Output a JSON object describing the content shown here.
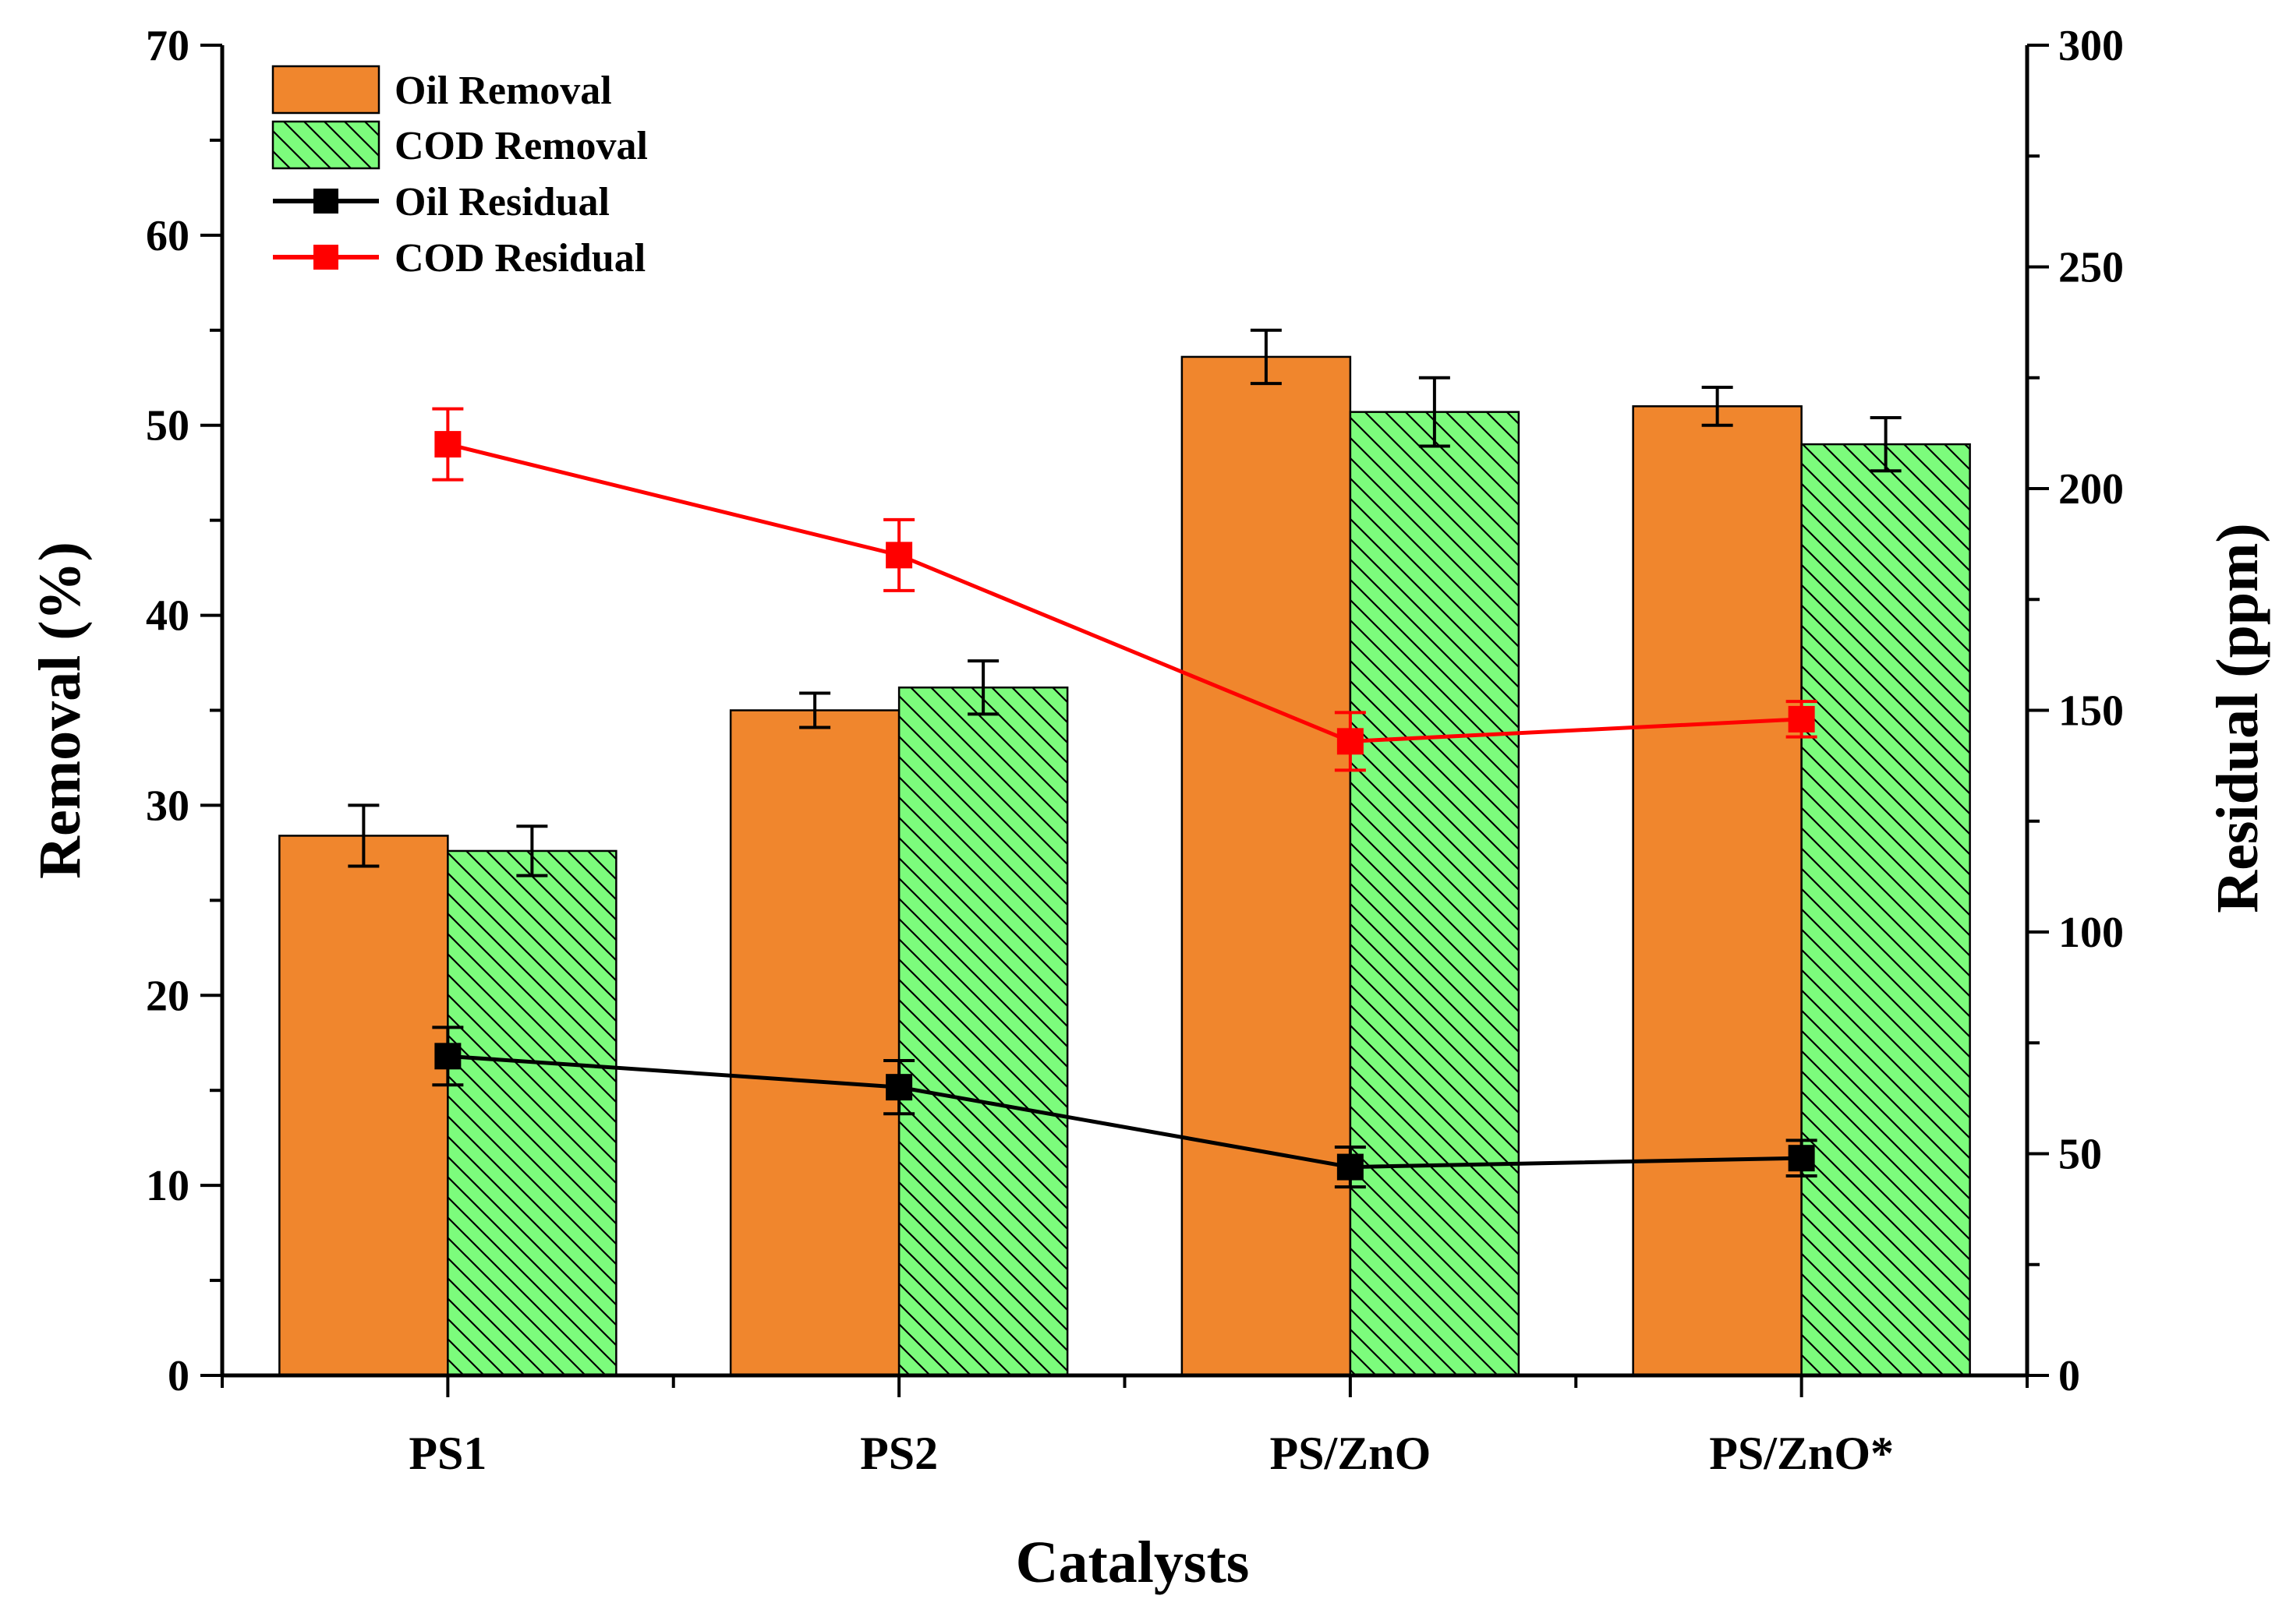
{
  "chart_data": {
    "type": "bar",
    "xlabel": "Catalysts",
    "ylabel": "Removal (%)",
    "y2label": "Residual (ppm)",
    "categories": [
      "PS1",
      "PS2",
      "PS/ZnO",
      "PS/ZnO*"
    ],
    "ylim": [
      0,
      70
    ],
    "y2lim": [
      0,
      300
    ],
    "yticks": [
      0,
      10,
      20,
      30,
      40,
      50,
      60,
      70
    ],
    "y2ticks": [
      0,
      50,
      100,
      150,
      200,
      250,
      300
    ],
    "grid": false,
    "legend_position": "top-left",
    "bar_series": [
      {
        "name": "Oil Removal",
        "color": "#F0862D",
        "pattern": "solid",
        "values": [
          28.4,
          35.0,
          53.6,
          51.0
        ],
        "errors": [
          1.6,
          0.9,
          1.4,
          1.0
        ]
      },
      {
        "name": "COD Removal",
        "color": "#7CFC7C",
        "pattern": "hatched",
        "values": [
          27.6,
          36.2,
          50.7,
          49.0
        ],
        "errors": [
          1.3,
          1.4,
          1.8,
          1.4
        ]
      }
    ],
    "line_series": [
      {
        "name": "Oil Residual",
        "color": "#000000",
        "axis": "right",
        "values": [
          72,
          65,
          47,
          49
        ],
        "errors": [
          6.5,
          6,
          4.5,
          4
        ]
      },
      {
        "name": "COD Residual",
        "color": "#FF0000",
        "axis": "right",
        "values": [
          210,
          185,
          143,
          148
        ],
        "errors": [
          8,
          8,
          6.5,
          4
        ]
      }
    ]
  }
}
